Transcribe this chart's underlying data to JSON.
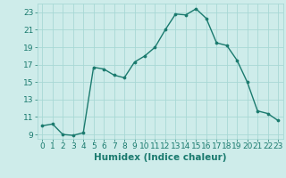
{
  "x": [
    0,
    1,
    2,
    3,
    4,
    5,
    6,
    7,
    8,
    9,
    10,
    11,
    12,
    13,
    14,
    15,
    16,
    17,
    18,
    19,
    20,
    21,
    22,
    23
  ],
  "y": [
    10.0,
    10.2,
    9.0,
    8.9,
    9.2,
    16.7,
    16.5,
    15.8,
    15.5,
    17.3,
    18.0,
    19.0,
    21.0,
    22.8,
    22.7,
    23.4,
    22.3,
    19.5,
    19.2,
    17.5,
    15.0,
    11.7,
    11.4,
    10.6
  ],
  "line_color": "#1a7a6e",
  "marker": "o",
  "markersize": 2.2,
  "linewidth": 1.0,
  "background_color": "#ceecea",
  "grid_color": "#a8d8d5",
  "xlabel": "Humidex (Indice chaleur)",
  "xlim": [
    -0.5,
    23.5
  ],
  "ylim": [
    8.5,
    24.0
  ],
  "yticks": [
    9,
    11,
    13,
    15,
    17,
    19,
    21,
    23
  ],
  "xticks": [
    0,
    1,
    2,
    3,
    4,
    5,
    6,
    7,
    8,
    9,
    10,
    11,
    12,
    13,
    14,
    15,
    16,
    17,
    18,
    19,
    20,
    21,
    22,
    23
  ],
  "tick_fontsize": 6.5,
  "xlabel_fontsize": 7.5,
  "xlabel_bold": true
}
